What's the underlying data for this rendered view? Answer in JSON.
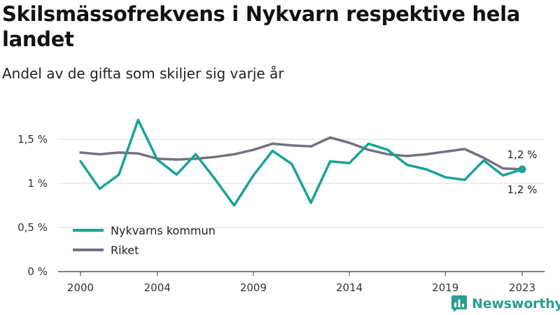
{
  "header": {
    "title": "Skilsmässofrekvens i Nykvarn respektive hela landet",
    "subtitle": "Andel av de gifta som skiljer sig varje år"
  },
  "brand": {
    "name": "Newsworthy",
    "icon": "bar-chart-speech-bubble-icon",
    "color": "#2a9d8f"
  },
  "chart_data": {
    "type": "line",
    "title": "Skilsmässofrekvens i Nykvarn respektive hela landet",
    "subtitle": "Andel av de gifta som skiljer sig varje år",
    "xlabel": "",
    "ylabel": "",
    "x": [
      2000,
      2001,
      2002,
      2003,
      2004,
      2005,
      2006,
      2007,
      2008,
      2009,
      2010,
      2011,
      2012,
      2013,
      2014,
      2015,
      2016,
      2017,
      2018,
      2019,
      2020,
      2021,
      2022,
      2023
    ],
    "xticks": [
      2000,
      2004,
      2009,
      2014,
      2019,
      2023
    ],
    "xtick_labels": [
      "2000",
      "2004",
      "2009",
      "2014",
      "2019",
      "2023"
    ],
    "ylim": [
      0,
      1.7
    ],
    "yticks": [
      0,
      0.5,
      1,
      1.5
    ],
    "ytick_labels": [
      "0 %",
      "0,5 %",
      "1 %",
      "1,5 %"
    ],
    "grid": "horizontal",
    "legend_position": "bottom-left",
    "series": [
      {
        "name": "Nykvarns kommun",
        "color": "#17a398",
        "values": [
          1.25,
          0.94,
          1.1,
          1.72,
          1.27,
          1.1,
          1.33,
          1.05,
          0.75,
          1.09,
          1.37,
          1.22,
          0.78,
          1.25,
          1.23,
          1.45,
          1.38,
          1.21,
          1.16,
          1.07,
          1.04,
          1.26,
          1.09,
          1.16
        ],
        "end_label": "1,2 %"
      },
      {
        "name": "Riket",
        "color": "#767080",
        "values": [
          1.35,
          1.33,
          1.35,
          1.34,
          1.28,
          1.27,
          1.28,
          1.3,
          1.33,
          1.38,
          1.45,
          1.43,
          1.42,
          1.52,
          1.46,
          1.38,
          1.33,
          1.31,
          1.33,
          1.36,
          1.39,
          1.29,
          1.17,
          1.16
        ],
        "end_label": "1,2 %"
      }
    ]
  }
}
